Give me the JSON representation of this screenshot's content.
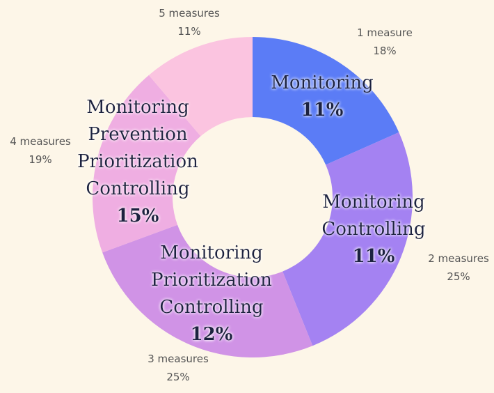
{
  "chart_data": {
    "type": "pie",
    "variant": "donut",
    "slices": [
      {
        "label_lines": [
          "Monitoring"
        ],
        "inner_pct": "11%",
        "outer_count": "1 measure",
        "outer_pct": "18%",
        "value": 18,
        "color": "#5b7cf6"
      },
      {
        "label_lines": [
          "Monitoring",
          "Controlling"
        ],
        "inner_pct": "11%",
        "outer_count": "2 measures",
        "outer_pct": "25%",
        "value": 25,
        "color": "#a482f2"
      },
      {
        "label_lines": [
          "Monitoring",
          "Prioritization",
          "Controlling"
        ],
        "inner_pct": "12%",
        "outer_count": "3 measures",
        "outer_pct": "25%",
        "value": 25,
        "color": "#d093e6"
      },
      {
        "label_lines": [
          "Monitoring",
          "Prevention",
          "Prioritization",
          "Controlling"
        ],
        "inner_pct": "15%",
        "outer_count": "4 measures",
        "outer_pct": "19%",
        "value": 19,
        "color": "#efaee2"
      },
      {
        "label_lines": [],
        "inner_pct": "",
        "outer_count": "5 measures",
        "outer_pct": "11%",
        "value": 11,
        "color": "#fbc4e0"
      }
    ]
  }
}
